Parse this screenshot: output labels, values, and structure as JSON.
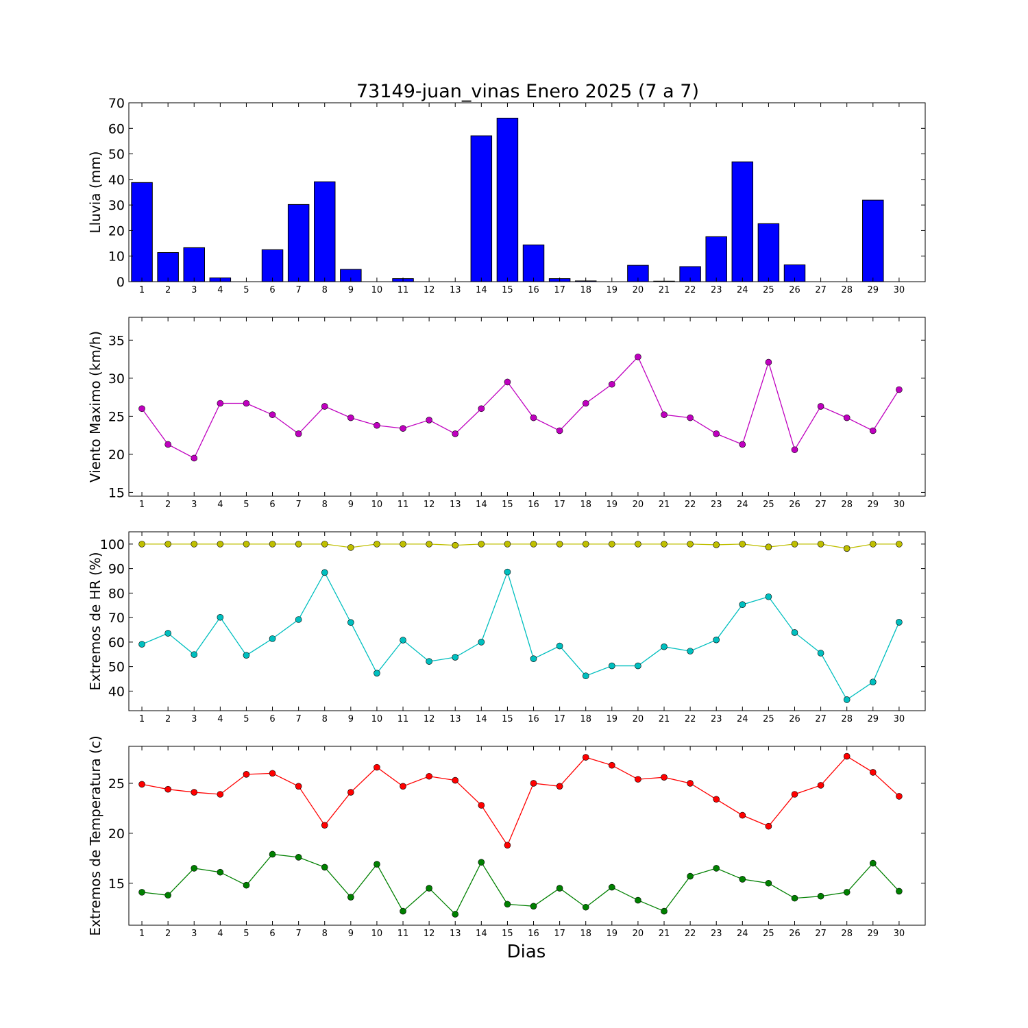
{
  "title": "73149-juan_vinas Enero 2025  (7 a 7)",
  "xlabel": "Dias",
  "days": [
    1,
    2,
    3,
    4,
    5,
    6,
    7,
    8,
    9,
    10,
    11,
    12,
    13,
    14,
    15,
    16,
    17,
    18,
    19,
    20,
    21,
    22,
    23,
    24,
    25,
    26,
    27,
    28,
    29,
    30
  ],
  "chart_data": [
    {
      "type": "bar",
      "ylabel": "Lluvia (mm)",
      "ylim": [
        0,
        70
      ],
      "yticks": [
        0,
        10,
        20,
        30,
        40,
        50,
        60,
        70
      ],
      "series": [
        {
          "color": "#0000ff",
          "values": [
            38.8,
            11.4,
            13.3,
            1.5,
            0,
            12.5,
            30.2,
            39.1,
            4.8,
            0,
            1.2,
            0,
            0,
            57.1,
            64,
            14.4,
            1.2,
            0.3,
            0,
            6.4,
            0.2,
            5.9,
            17.6,
            46.9,
            22.7,
            6.6,
            0,
            0,
            31.9,
            0
          ]
        }
      ]
    },
    {
      "type": "line",
      "ylabel": "Viento Maximo (km/h)",
      "ylim": [
        14.5,
        38
      ],
      "yticks": [
        15,
        20,
        25,
        30,
        35
      ],
      "series": [
        {
          "color": "#bf00bf",
          "values": [
            26,
            21.3,
            19.5,
            26.7,
            26.7,
            25.2,
            22.7,
            26.3,
            24.8,
            23.8,
            23.4,
            24.5,
            22.7,
            26,
            29.5,
            24.8,
            23.1,
            26.7,
            29.2,
            32.8,
            25.2,
            24.8,
            22.7,
            21.3,
            32.1,
            20.6,
            26.3,
            24.8,
            23.1,
            28.5
          ]
        }
      ]
    },
    {
      "type": "line",
      "ylabel": "Extremos de HR (%)",
      "ylim": [
        32,
        105
      ],
      "yticks": [
        40,
        50,
        60,
        70,
        80,
        90,
        100
      ],
      "series": [
        {
          "color": "#bfbf00",
          "values": [
            100,
            100,
            100,
            100,
            100,
            100,
            100,
            100,
            98.6,
            100,
            100,
            100,
            99.5,
            100,
            100,
            100,
            100,
            100,
            100,
            100,
            100,
            100,
            99.7,
            100,
            98.8,
            100,
            100,
            98.2,
            100,
            100
          ]
        },
        {
          "color": "#00bfbf",
          "values": [
            59.1,
            63.6,
            54.9,
            70.1,
            54.6,
            61.4,
            69.2,
            88.4,
            68,
            47.3,
            60.8,
            52.1,
            53.8,
            60,
            88.6,
            53.2,
            58.4,
            46.2,
            50.3,
            50.3,
            58.1,
            56.3,
            60.9,
            75.3,
            78.5,
            63.9,
            55.5,
            36.5,
            43.7,
            68.1
          ]
        }
      ]
    },
    {
      "type": "line",
      "ylabel": "Extremos de Temperatura (c)",
      "ylim": [
        10.8,
        28.7
      ],
      "yticks": [
        15,
        20,
        25
      ],
      "series": [
        {
          "color": "#ff0000",
          "values": [
            24.9,
            24.4,
            24.1,
            23.9,
            25.9,
            26,
            24.7,
            20.8,
            24.1,
            26.6,
            24.7,
            25.7,
            25.3,
            22.8,
            18.8,
            25,
            24.7,
            27.6,
            26.8,
            25.4,
            25.6,
            25,
            23.4,
            21.8,
            20.7,
            23.9,
            24.8,
            27.7,
            26.1,
            23.7
          ]
        },
        {
          "color": "#008000",
          "values": [
            14.1,
            13.8,
            16.5,
            16.1,
            14.8,
            17.9,
            17.6,
            16.6,
            13.6,
            16.9,
            12.2,
            14.5,
            11.9,
            17.1,
            12.9,
            12.7,
            14.5,
            12.6,
            14.6,
            13.3,
            12.2,
            15.7,
            16.5,
            15.4,
            15,
            13.5,
            13.7,
            14.1,
            17,
            14.2
          ]
        }
      ]
    }
  ]
}
